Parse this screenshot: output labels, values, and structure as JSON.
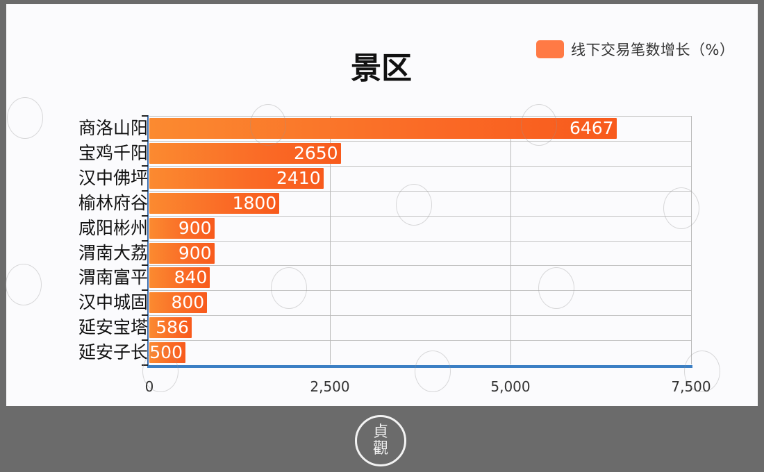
{
  "title": "景区",
  "legend": {
    "label": "线下交易笔数增长（%）",
    "color": "#ff7a45"
  },
  "chart_data": {
    "type": "bar",
    "orientation": "horizontal",
    "title": "景区",
    "xlabel": "",
    "ylabel": "",
    "categories": [
      "商洛山阳",
      "宝鸡千阳",
      "汉中佛坪",
      "榆林府谷",
      "咸阳彬州",
      "渭南大荔",
      "渭南富平",
      "汉中城固",
      "延安宝塔",
      "延安子长"
    ],
    "series": [
      {
        "name": "线下交易笔数增长（%）",
        "values": [
          6467,
          2650,
          2410,
          1800,
          900,
          900,
          840,
          800,
          586,
          500
        ],
        "color": "#ff7a45"
      }
    ],
    "xlim": [
      0,
      7500
    ],
    "x_ticks": [
      "0",
      "2,500",
      "5,000",
      "7,500"
    ],
    "grid": true,
    "legend_position": "top-right",
    "data_labels": true
  },
  "footer": {
    "seal_text_top": "貞",
    "seal_text_bottom": "觀"
  }
}
